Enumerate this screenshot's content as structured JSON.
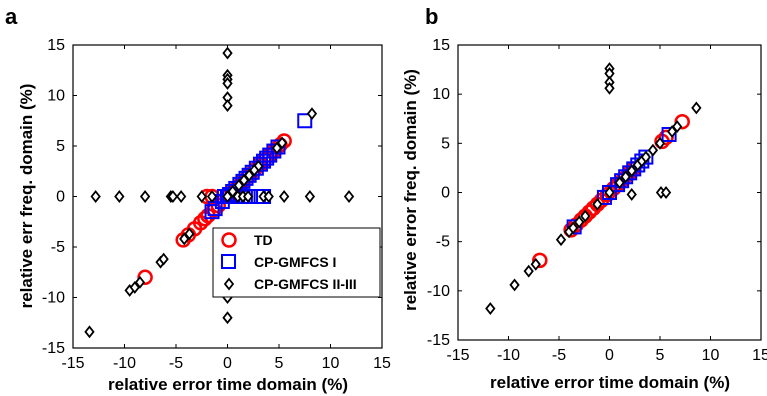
{
  "colors": {
    "TD": "#ff0000",
    "CP-GMFCS I": "#0000ff",
    "CP-GMFCS II-III": "#000000"
  },
  "chart_data": [
    {
      "panel": "a",
      "type": "scatter",
      "xlabel": "relative error time domain (%)",
      "ylabel": "relative err freq. domain (%)",
      "xlim": [
        -15,
        15
      ],
      "ylim": [
        -15,
        15
      ],
      "xticks": [
        "-15",
        "-10",
        "-5",
        "0",
        "5",
        "10",
        "15"
      ],
      "yticks": [
        "-15",
        "-10",
        "-5",
        "0",
        "5",
        "10",
        "15"
      ],
      "grid": false,
      "legend_position": "bottom-center",
      "series": [
        {
          "name": "TD",
          "marker": "circle",
          "x": [
            -8,
            -4.3,
            -3.8,
            -3.2,
            -2.6,
            -2.2,
            -1.9,
            -1.3,
            -0.9,
            0.2,
            0.6,
            1.0,
            1.5,
            2.0,
            2.6,
            3.1,
            3.6,
            4.1,
            4.6,
            5.1,
            5.5,
            -2.0,
            -1.5
          ],
          "y": [
            -8,
            -4.3,
            -3.8,
            -3.2,
            -2.6,
            -2.2,
            -1.9,
            -1.3,
            -0.9,
            0.2,
            0.6,
            1.0,
            1.5,
            2.0,
            2.6,
            3.1,
            3.6,
            4.1,
            4.6,
            5.1,
            5.5,
            0.0,
            0.0
          ]
        },
        {
          "name": "CP-GMFCS I",
          "marker": "square",
          "x": [
            7.5,
            -1.5,
            -1.2,
            -0.5,
            0.0,
            0.2,
            0.5,
            0.8,
            1.2,
            1.5,
            1.8,
            2.1,
            2.4,
            2.8,
            3.2,
            3.5,
            3.8,
            4.1,
            4.5,
            4.9,
            -0.3,
            0.5,
            1.0,
            1.5,
            2.0,
            3.0,
            3.5
          ],
          "y": [
            7.5,
            -1.5,
            -1.2,
            -0.5,
            0.0,
            0.2,
            0.5,
            0.8,
            1.2,
            1.5,
            1.8,
            2.1,
            2.4,
            2.8,
            3.2,
            3.5,
            3.8,
            4.1,
            4.5,
            4.9,
            0.0,
            0.0,
            0.0,
            0.0,
            0.0,
            0.0,
            0.0
          ]
        },
        {
          "name": "CP-GMFCS II-III",
          "marker": "diamond",
          "x": [
            -13.4,
            -9.5,
            -9,
            -8.5,
            -6.5,
            -6.2,
            -4.2,
            -3.7,
            8.2,
            5.3,
            4.8,
            3.0,
            2.6,
            2.1,
            1.6,
            1.1,
            0.5,
            0.0,
            0,
            0,
            0,
            0,
            0,
            0,
            0,
            0,
            -12.8,
            -10.5,
            -8,
            -5.5,
            -5.3,
            -4.5,
            -2.5,
            -1.5,
            1.0,
            1.5,
            2.0,
            3.5,
            4.0,
            5.5,
            8.0,
            11.8
          ],
          "y": [
            -13.4,
            -9.3,
            -9,
            -8.5,
            -6.5,
            -6.2,
            -4.2,
            -3.7,
            8.2,
            5.3,
            4.8,
            3.0,
            2.6,
            2.1,
            1.6,
            1.1,
            0.5,
            0.0,
            14.2,
            12.0,
            11.6,
            11.2,
            9.8,
            9.0,
            -12.0,
            -10.0,
            0,
            0,
            0,
            0,
            0,
            0,
            0,
            0,
            0,
            0,
            0,
            0,
            0,
            0,
            0,
            0
          ]
        }
      ]
    },
    {
      "panel": "b",
      "type": "scatter",
      "xlabel": "relative error time domain (%)",
      "ylabel": "relative error freq. domain (%)",
      "xlim": [
        -15,
        15
      ],
      "ylim": [
        -15,
        15
      ],
      "xticks": [
        "-15",
        "-10",
        "-5",
        "0",
        "5",
        "10",
        "15"
      ],
      "yticks": [
        "-15",
        "-10",
        "-5",
        "0",
        "5",
        "10",
        "15"
      ],
      "grid": false,
      "series": [
        {
          "name": "TD",
          "marker": "circle",
          "x": [
            -6.9,
            -3.8,
            -3.3,
            -2.8,
            -2.4,
            -2.0,
            -1.6,
            -1.2,
            -0.8,
            -0.2,
            0.4,
            0.9,
            1.4,
            1.9,
            2.4,
            5.2,
            5.6,
            7.2
          ],
          "y": [
            -6.9,
            -3.8,
            -3.3,
            -2.8,
            -2.4,
            -2.0,
            -1.6,
            -1.2,
            -0.8,
            -0.2,
            0.4,
            0.9,
            1.4,
            1.9,
            2.4,
            5.2,
            5.6,
            7.2
          ]
        },
        {
          "name": "CP-GMFCS I",
          "marker": "square",
          "x": [
            -3.5,
            0.0,
            0.8,
            1.2,
            1.6,
            2.0,
            2.4,
            2.8,
            3.2,
            3.6,
            5.9,
            -0.5
          ],
          "y": [
            -3.5,
            0.0,
            0.8,
            1.2,
            1.6,
            2.0,
            2.4,
            2.8,
            3.2,
            3.6,
            5.9,
            -0.5
          ]
        },
        {
          "name": "CP-GMFCS II-III",
          "marker": "diamond",
          "x": [
            -11.8,
            -9.4,
            -8.0,
            -7.3,
            -4.8,
            -4.0,
            -3.6,
            -3.0,
            -2.4,
            -1.2,
            0.0,
            1.0,
            1.6,
            2.2,
            2.8,
            3.2,
            3.6,
            4.3,
            5.0,
            6.2,
            6.7,
            8.6,
            0,
            0,
            0,
            0,
            2.2,
            5.1,
            5.6
          ],
          "y": [
            -11.8,
            -9.4,
            -8.0,
            -7.3,
            -4.8,
            -4.0,
            -3.6,
            -3.0,
            -2.4,
            -1.2,
            0.0,
            1.0,
            1.6,
            2.2,
            2.8,
            3.2,
            3.6,
            4.3,
            5.0,
            6.2,
            6.7,
            8.6,
            12.6,
            12.1,
            11.2,
            10.6,
            -0.2,
            0,
            0
          ]
        }
      ]
    }
  ]
}
